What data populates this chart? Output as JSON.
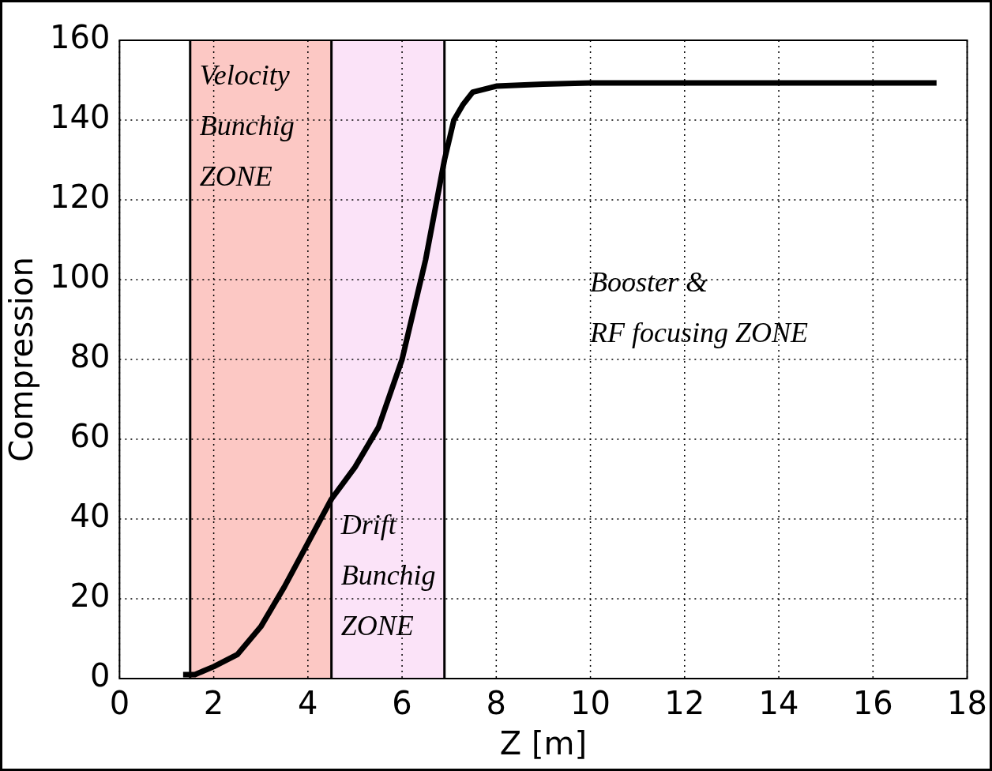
{
  "chart_data": {
    "type": "line",
    "xlabel": "Z [m]",
    "ylabel": "Compression",
    "x": [
      1.35,
      1.6,
      2.0,
      2.5,
      3.0,
      3.5,
      4.0,
      4.5,
      5.0,
      5.5,
      6.0,
      6.5,
      6.9,
      7.1,
      7.3,
      7.5,
      8.0,
      9.0,
      10.0,
      12.0,
      14.0,
      16.0,
      17.35
    ],
    "series": [
      {
        "color": "#000000",
        "values": [
          1,
          1,
          3,
          6,
          13,
          23,
          34,
          45,
          53,
          63,
          80,
          105,
          130,
          140,
          144,
          147,
          148.5,
          149,
          149.3,
          149.3,
          149.3,
          149.3,
          149.3
        ]
      }
    ],
    "xlim": [
      0,
      18
    ],
    "xticks": [
      0,
      2,
      4,
      6,
      8,
      10,
      12,
      14,
      16,
      18
    ],
    "ylim": [
      0,
      160
    ],
    "yticks": [
      0,
      20,
      40,
      60,
      80,
      100,
      120,
      140,
      160
    ],
    "grid": true,
    "marker": "none",
    "line_style": "solid",
    "legend": false,
    "bands": [
      {
        "axis": "x",
        "from": 1.5,
        "to": 4.5,
        "label": "Velocity\nBunchig\nZONE",
        "color": "#fcc8c4"
      },
      {
        "axis": "x",
        "from": 4.5,
        "to": 6.9,
        "label": "Drift\nBunchig\nZONE",
        "color": "#fbe3f8"
      }
    ],
    "ref_lines": [
      {
        "axis": "x",
        "value": 1.5,
        "color": "#000000",
        "line_style": "solid"
      },
      {
        "axis": "x",
        "value": 4.5,
        "color": "#000000",
        "line_style": "solid"
      },
      {
        "axis": "x",
        "value": 6.9,
        "color": "#000000",
        "line_style": "solid"
      }
    ],
    "annotations": [
      "Booster &\nRF focusing ZONE"
    ]
  }
}
